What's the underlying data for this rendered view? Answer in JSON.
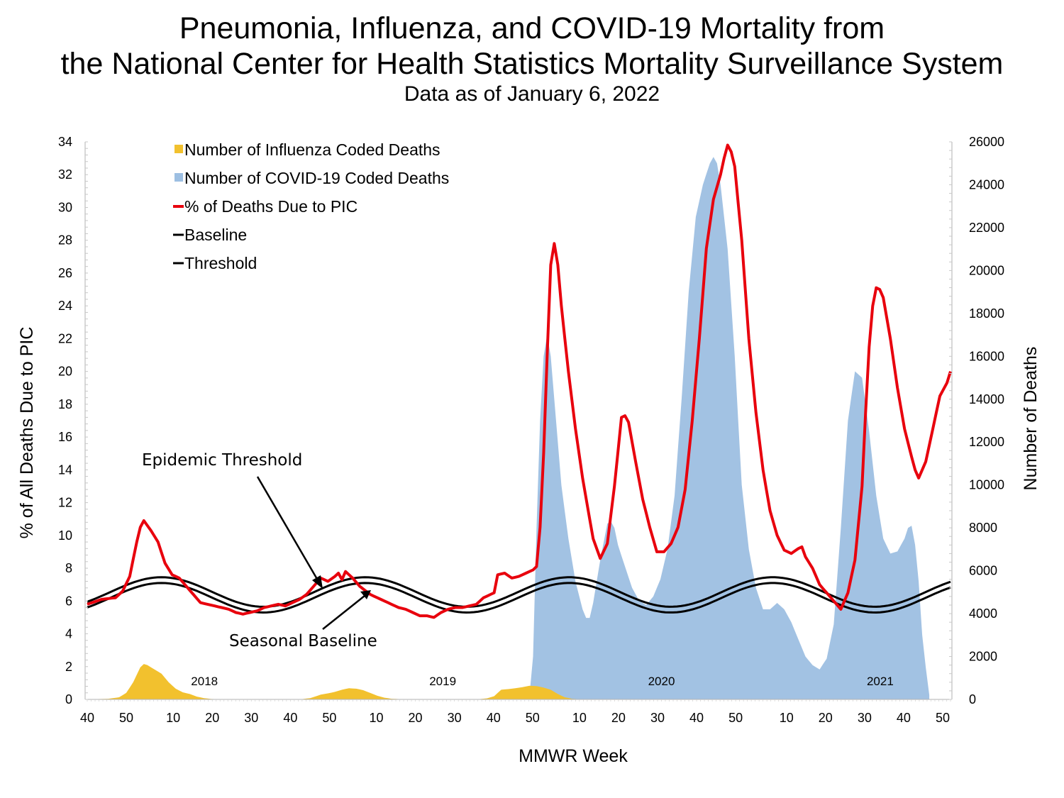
{
  "header": {
    "title_line1": "Pneumonia, Influenza, and COVID-19 Mortality from",
    "title_line2": "the National Center for Health Statistics Mortality Surveillance System",
    "subtitle": "Data as of January 6, 2022"
  },
  "chart_data": {
    "type": "line",
    "xlabel": "MMWR Week",
    "ylabel": "% of All Deaths Due to PIC",
    "y2label": "Number of Deaths",
    "ylim": [
      0,
      34
    ],
    "y2lim": [
      0,
      26000
    ],
    "y_ticks": [
      0,
      2,
      4,
      6,
      8,
      10,
      12,
      14,
      16,
      18,
      20,
      22,
      24,
      26,
      28,
      30,
      32,
      34
    ],
    "y2_ticks": [
      0,
      2000,
      4000,
      6000,
      8000,
      10000,
      12000,
      14000,
      16000,
      18000,
      20000,
      22000,
      24000,
      26000
    ],
    "x_ticks": [
      {
        "i": 0,
        "label": "40"
      },
      {
        "i": 10,
        "label": "50"
      },
      {
        "i": 22,
        "label": "10"
      },
      {
        "i": 32,
        "label": "20"
      },
      {
        "i": 42,
        "label": "30"
      },
      {
        "i": 52,
        "label": "40"
      },
      {
        "i": 62,
        "label": "50"
      },
      {
        "i": 74,
        "label": "10"
      },
      {
        "i": 84,
        "label": "20"
      },
      {
        "i": 94,
        "label": "30"
      },
      {
        "i": 104,
        "label": "40"
      },
      {
        "i": 114,
        "label": "50"
      },
      {
        "i": 126,
        "label": "10"
      },
      {
        "i": 136,
        "label": "20"
      },
      {
        "i": 146,
        "label": "30"
      },
      {
        "i": 156,
        "label": "40"
      },
      {
        "i": 166,
        "label": "50"
      },
      {
        "i": 179,
        "label": "10"
      },
      {
        "i": 189,
        "label": "20"
      },
      {
        "i": 199,
        "label": "30"
      },
      {
        "i": 209,
        "label": "40"
      },
      {
        "i": 219,
        "label": "50"
      }
    ],
    "year_labels": [
      {
        "i": 30,
        "label": "2018"
      },
      {
        "i": 91,
        "label": "2019"
      },
      {
        "i": 147,
        "label": "2020"
      },
      {
        "i": 203,
        "label": "2021"
      }
    ],
    "legend": {
      "position": "top-left",
      "items": [
        {
          "key": "flu",
          "label": "Number of Influenza Coded Deaths",
          "color": "#f2c12e",
          "kind": "area"
        },
        {
          "key": "covid",
          "label": "Number of COVID-19 Coded Deaths",
          "color": "#9dbfe2",
          "kind": "area"
        },
        {
          "key": "pic",
          "label": "% of Deaths Due to PIC",
          "color": "#e8000d",
          "kind": "line"
        },
        {
          "key": "baseline",
          "label": "Baseline",
          "color": "#000000",
          "kind": "line"
        },
        {
          "key": "threshold",
          "label": "Threshold",
          "color": "#000000",
          "kind": "line"
        }
      ]
    },
    "annotations": [
      {
        "text": "Epidemic Threshold"
      },
      {
        "text": "Seasonal Baseline"
      }
    ],
    "n_weeks": 222,
    "baseline_model": {
      "mean": 6.2,
      "amplitude": 0.9,
      "period_weeks": 52.18,
      "peak_week_index": 19
    },
    "threshold_offset": 0.35,
    "series": {
      "pic": {
        "axis": "left",
        "points": [
          [
            0,
            5.8
          ],
          [
            4,
            6.1
          ],
          [
            8,
            6.2
          ],
          [
            10,
            6.6
          ],
          [
            12,
            7.5
          ],
          [
            14,
            9.6
          ],
          [
            15,
            10.5
          ],
          [
            16,
            10.9
          ],
          [
            18,
            10.3
          ],
          [
            20,
            9.6
          ],
          [
            22,
            8.3
          ],
          [
            24,
            7.6
          ],
          [
            26,
            7.4
          ],
          [
            28,
            6.9
          ],
          [
            30,
            6.4
          ],
          [
            32,
            5.9
          ],
          [
            34,
            5.8
          ],
          [
            36,
            5.7
          ],
          [
            38,
            5.6
          ],
          [
            40,
            5.5
          ],
          [
            42,
            5.3
          ],
          [
            44,
            5.2
          ],
          [
            46,
            5.3
          ],
          [
            48,
            5.4
          ],
          [
            50,
            5.6
          ],
          [
            52,
            5.7
          ],
          [
            54,
            5.8
          ],
          [
            56,
            5.7
          ],
          [
            58,
            5.9
          ],
          [
            60,
            6.1
          ],
          [
            62,
            6.4
          ],
          [
            64,
            6.9
          ],
          [
            66,
            7.4
          ],
          [
            68,
            7.2
          ],
          [
            70,
            7.5
          ],
          [
            71,
            7.7
          ],
          [
            72,
            7.3
          ],
          [
            73,
            7.8
          ],
          [
            75,
            7.4
          ],
          [
            77,
            6.9
          ],
          [
            80,
            6.4
          ],
          [
            82,
            6.2
          ],
          [
            84,
            6.0
          ],
          [
            86,
            5.8
          ],
          [
            88,
            5.6
          ],
          [
            90,
            5.5
          ],
          [
            92,
            5.3
          ],
          [
            94,
            5.1
          ],
          [
            96,
            5.1
          ],
          [
            98,
            5.0
          ],
          [
            100,
            5.3
          ],
          [
            102,
            5.5
          ],
          [
            104,
            5.6
          ],
          [
            106,
            5.6
          ],
          [
            108,
            5.7
          ],
          [
            110,
            5.8
          ],
          [
            112,
            6.2
          ],
          [
            114,
            6.4
          ],
          [
            115,
            6.5
          ],
          [
            116,
            7.6
          ],
          [
            118,
            7.7
          ],
          [
            120,
            7.4
          ],
          [
            122,
            7.5
          ],
          [
            124,
            7.7
          ],
          [
            126,
            7.9
          ],
          [
            127,
            8.1
          ],
          [
            128,
            10.5
          ],
          [
            129,
            15.0
          ],
          [
            130,
            21.0
          ],
          [
            131,
            26.5
          ],
          [
            132,
            27.8
          ],
          [
            133,
            26.5
          ],
          [
            134,
            24.0
          ],
          [
            136,
            20.0
          ],
          [
            138,
            16.5
          ],
          [
            140,
            13.5
          ],
          [
            142,
            11.0
          ],
          [
            143,
            9.8
          ],
          [
            145,
            8.6
          ],
          [
            147,
            9.5
          ],
          [
            149,
            13.0
          ],
          [
            151,
            17.2
          ],
          [
            152,
            17.3
          ],
          [
            153,
            16.9
          ],
          [
            155,
            14.5
          ],
          [
            157,
            12.2
          ],
          [
            159,
            10.5
          ],
          [
            161,
            9.0
          ],
          [
            163,
            9.0
          ],
          [
            165,
            9.5
          ],
          [
            167,
            10.5
          ],
          [
            169,
            12.8
          ],
          [
            171,
            17.0
          ],
          [
            173,
            22.0
          ],
          [
            175,
            27.5
          ],
          [
            177,
            30.5
          ],
          [
            179,
            32.0
          ],
          [
            180,
            33.0
          ],
          [
            181,
            33.8
          ],
          [
            182,
            33.4
          ],
          [
            183,
            32.5
          ],
          [
            185,
            28.0
          ],
          [
            187,
            22.0
          ],
          [
            189,
            17.5
          ],
          [
            191,
            14.0
          ],
          [
            193,
            11.5
          ],
          [
            195,
            10.0
          ],
          [
            197,
            9.1
          ],
          [
            199,
            8.9
          ],
          [
            201,
            9.2
          ],
          [
            202,
            9.3
          ],
          [
            203,
            8.7
          ],
          [
            205,
            8.0
          ],
          [
            207,
            7.0
          ],
          [
            209,
            6.5
          ],
          [
            211,
            6.0
          ],
          [
            213,
            5.5
          ],
          [
            215,
            6.5
          ],
          [
            217,
            8.5
          ],
          [
            219,
            13.0
          ],
          [
            220,
            17.5
          ],
          [
            221,
            21.5
          ],
          [
            222,
            24.0
          ],
          [
            223,
            25.1
          ],
          [
            224,
            25.0
          ],
          [
            225,
            24.5
          ],
          [
            227,
            22.0
          ],
          [
            229,
            19.0
          ],
          [
            231,
            16.5
          ],
          [
            233,
            14.8
          ],
          [
            234,
            14.0
          ],
          [
            235,
            13.5
          ],
          [
            237,
            14.5
          ],
          [
            239,
            16.5
          ],
          [
            241,
            18.5
          ],
          [
            243,
            19.3
          ],
          [
            244,
            20.0
          ]
        ]
      },
      "covid": {
        "axis": "right",
        "points": [
          [
            0,
            0
          ],
          [
            124,
            0
          ],
          [
            125,
            200
          ],
          [
            126,
            2000
          ],
          [
            127,
            8000
          ],
          [
            128,
            13000
          ],
          [
            129,
            16000
          ],
          [
            130,
            17000
          ],
          [
            131,
            16000
          ],
          [
            132,
            14000
          ],
          [
            133,
            12000
          ],
          [
            134,
            10000
          ],
          [
            136,
            7500
          ],
          [
            138,
            5500
          ],
          [
            140,
            4200
          ],
          [
            141,
            3800
          ],
          [
            142,
            3800
          ],
          [
            143,
            4500
          ],
          [
            145,
            6500
          ],
          [
            147,
            8200
          ],
          [
            148,
            8300
          ],
          [
            149,
            8000
          ],
          [
            150,
            7200
          ],
          [
            152,
            6200
          ],
          [
            154,
            5200
          ],
          [
            156,
            4600
          ],
          [
            158,
            4400
          ],
          [
            160,
            4800
          ],
          [
            162,
            5600
          ],
          [
            164,
            7000
          ],
          [
            166,
            9500
          ],
          [
            168,
            14000
          ],
          [
            170,
            19000
          ],
          [
            172,
            22500
          ],
          [
            174,
            24000
          ],
          [
            176,
            25000
          ],
          [
            177,
            25300
          ],
          [
            178,
            25000
          ],
          [
            179,
            24000
          ],
          [
            181,
            21000
          ],
          [
            183,
            16000
          ],
          [
            185,
            10000
          ],
          [
            187,
            7000
          ],
          [
            189,
            5200
          ],
          [
            191,
            4200
          ],
          [
            193,
            4200
          ],
          [
            195,
            4500
          ],
          [
            197,
            4200
          ],
          [
            199,
            3600
          ],
          [
            201,
            2800
          ],
          [
            203,
            2000
          ],
          [
            205,
            1600
          ],
          [
            207,
            1400
          ],
          [
            209,
            1900
          ],
          [
            211,
            3500
          ],
          [
            213,
            8000
          ],
          [
            215,
            13000
          ],
          [
            217,
            15300
          ],
          [
            219,
            15000
          ],
          [
            221,
            12500
          ],
          [
            223,
            9500
          ],
          [
            225,
            7500
          ],
          [
            227,
            6800
          ],
          [
            229,
            6900
          ],
          [
            231,
            7500
          ],
          [
            232,
            8000
          ],
          [
            233,
            8100
          ],
          [
            234,
            7200
          ],
          [
            235,
            5500
          ],
          [
            236,
            3000
          ],
          [
            237,
            1500
          ],
          [
            238,
            200
          ]
        ]
      },
      "flu": {
        "axis": "right",
        "points": [
          [
            0,
            0
          ],
          [
            6,
            30
          ],
          [
            9,
            100
          ],
          [
            11,
            300
          ],
          [
            13,
            800
          ],
          [
            15,
            1500
          ],
          [
            16,
            1650
          ],
          [
            17,
            1600
          ],
          [
            19,
            1400
          ],
          [
            21,
            1200
          ],
          [
            23,
            800
          ],
          [
            25,
            500
          ],
          [
            27,
            330
          ],
          [
            29,
            250
          ],
          [
            31,
            130
          ],
          [
            33,
            60
          ],
          [
            35,
            20
          ],
          [
            40,
            0
          ],
          [
            60,
            0
          ],
          [
            63,
            60
          ],
          [
            66,
            220
          ],
          [
            68,
            280
          ],
          [
            70,
            350
          ],
          [
            72,
            450
          ],
          [
            74,
            520
          ],
          [
            76,
            500
          ],
          [
            78,
            430
          ],
          [
            80,
            300
          ],
          [
            82,
            170
          ],
          [
            84,
            80
          ],
          [
            86,
            30
          ],
          [
            90,
            0
          ],
          [
            110,
            0
          ],
          [
            113,
            50
          ],
          [
            115,
            150
          ],
          [
            117,
            450
          ],
          [
            119,
            480
          ],
          [
            121,
            520
          ],
          [
            123,
            570
          ],
          [
            125,
            640
          ],
          [
            127,
            620
          ],
          [
            129,
            550
          ],
          [
            131,
            450
          ],
          [
            133,
            250
          ],
          [
            135,
            100
          ],
          [
            137,
            30
          ],
          [
            140,
            0
          ],
          [
            244,
            0
          ]
        ]
      }
    }
  }
}
